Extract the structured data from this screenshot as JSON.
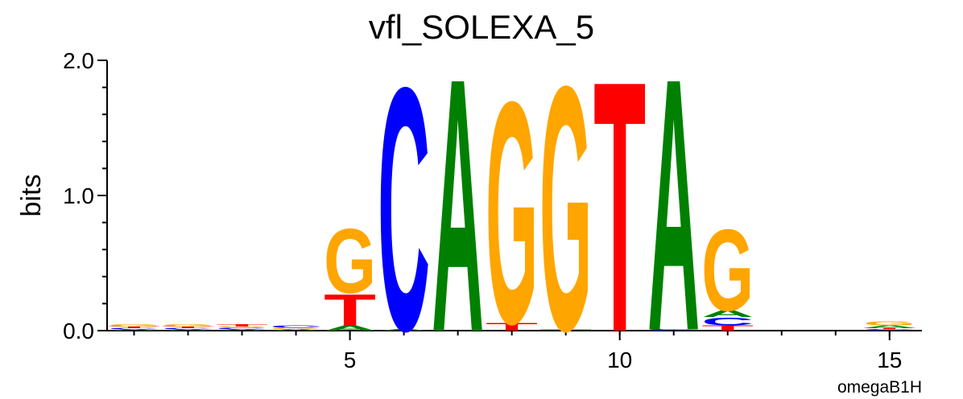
{
  "chart_data": {
    "type": "logo",
    "title": "vfl_SOLEXA_5",
    "ylabel": "bits",
    "annotation": "omegaB1H",
    "x": [
      1,
      2,
      3,
      4,
      5,
      6,
      7,
      8,
      9,
      10,
      11,
      12,
      13,
      14,
      15
    ],
    "xlim": [
      0.5,
      15.6
    ],
    "xticks": [
      5,
      10,
      15
    ],
    "ylim": [
      0,
      2
    ],
    "yticks": [
      {
        "value": 0,
        "label": "0.0"
      },
      {
        "value": 1,
        "label": "1.0"
      },
      {
        "value": 2,
        "label": "2.0"
      }
    ],
    "yminorticks": [
      0.2,
      0.4,
      0.6,
      0.8,
      1.2,
      1.4,
      1.6,
      1.8
    ],
    "colors": {
      "A": "#008000",
      "C": "#0000ff",
      "G": "#ffa500",
      "T": "#ff0000"
    },
    "stacks": [
      [
        {
          "letter": "A",
          "bits": 0.01
        },
        {
          "letter": "C",
          "bits": 0.01
        },
        {
          "letter": "T",
          "bits": 0.01
        },
        {
          "letter": "G",
          "bits": 0.02
        }
      ],
      [
        {
          "letter": "A",
          "bits": 0.01
        },
        {
          "letter": "C",
          "bits": 0.01
        },
        {
          "letter": "T",
          "bits": 0.01
        },
        {
          "letter": "G",
          "bits": 0.02
        }
      ],
      [
        {
          "letter": "A",
          "bits": 0.01
        },
        {
          "letter": "C",
          "bits": 0.01
        },
        {
          "letter": "G",
          "bits": 0.01
        },
        {
          "letter": "T",
          "bits": 0.02
        }
      ],
      [
        {
          "letter": "A",
          "bits": 0.01
        },
        {
          "letter": "G",
          "bits": 0.01
        },
        {
          "letter": "C",
          "bits": 0.02
        }
      ],
      [
        {
          "letter": "A",
          "bits": 0.04
        },
        {
          "letter": "T",
          "bits": 0.24
        },
        {
          "letter": "G",
          "bits": 0.49
        }
      ],
      [
        {
          "letter": "A",
          "bits": 0.01
        },
        {
          "letter": "C",
          "bits": 1.85
        }
      ],
      [
        {
          "letter": "A",
          "bits": 1.93
        }
      ],
      [
        {
          "letter": "T",
          "bits": 0.06
        },
        {
          "letter": "G",
          "bits": 1.69
        }
      ],
      [
        {
          "letter": "T",
          "bits": 0.01
        },
        {
          "letter": "G",
          "bits": 1.86
        }
      ],
      [
        {
          "letter": "T",
          "bits": 1.91
        }
      ],
      [
        {
          "letter": "C",
          "bits": 0.01
        },
        {
          "letter": "A",
          "bits": 1.92
        }
      ],
      [
        {
          "letter": "T",
          "bits": 0.04
        },
        {
          "letter": "C",
          "bits": 0.06
        },
        {
          "letter": "A",
          "bits": 0.05
        },
        {
          "letter": "G",
          "bits": 0.62
        }
      ],
      [],
      [],
      [
        {
          "letter": "C",
          "bits": 0.01
        },
        {
          "letter": "T",
          "bits": 0.01
        },
        {
          "letter": "A",
          "bits": 0.02
        },
        {
          "letter": "G",
          "bits": 0.03
        }
      ]
    ]
  }
}
